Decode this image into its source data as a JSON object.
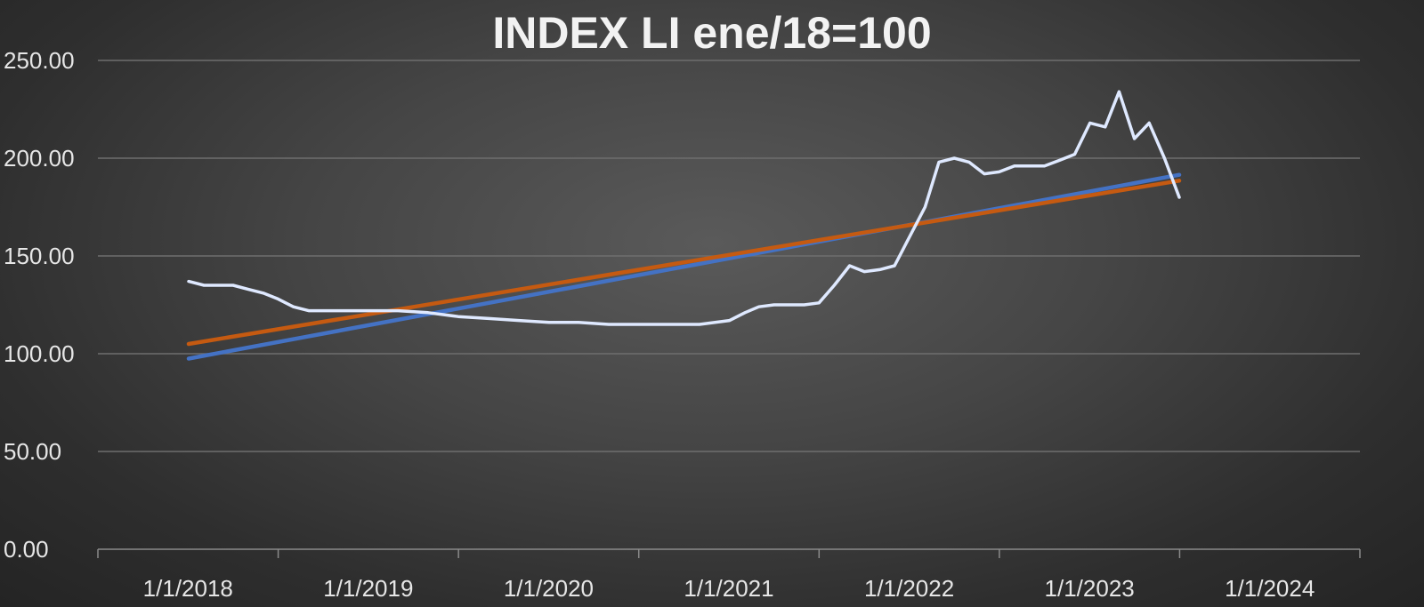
{
  "chart_data": {
    "type": "line",
    "title": "INDEX LI ene/18=100",
    "xlabel": "",
    "ylabel": "",
    "ylim": [
      0,
      250
    ],
    "yticks": [
      "0.00",
      "50.00",
      "100.00",
      "150.00",
      "200.00",
      "250.00"
    ],
    "xticks": [
      "1/1/2018",
      "1/1/2019",
      "1/1/2020",
      "1/1/2021",
      "1/1/2022",
      "1/1/2023",
      "1/1/2024"
    ],
    "xlim": [
      "2017-07-01",
      "2024-07-01"
    ],
    "grid": true,
    "legend": "none",
    "series": [
      {
        "color": "#dfe9ff",
        "x": [
          "2018-01-01",
          "2018-02-01",
          "2018-03-01",
          "2018-04-01",
          "2018-05-01",
          "2018-06-01",
          "2018-07-01",
          "2018-08-01",
          "2018-09-01",
          "2018-10-01",
          "2018-11-01",
          "2018-12-01",
          "2019-01-01",
          "2019-03-01",
          "2019-05-01",
          "2019-07-01",
          "2019-09-01",
          "2019-11-01",
          "2020-01-01",
          "2020-03-01",
          "2020-05-01",
          "2020-07-01",
          "2020-09-01",
          "2020-11-01",
          "2021-01-01",
          "2021-02-01",
          "2021-03-01",
          "2021-04-01",
          "2021-05-01",
          "2021-06-01",
          "2021-07-01",
          "2021-08-01",
          "2021-09-01",
          "2021-10-01",
          "2021-11-01",
          "2021-12-01",
          "2022-01-01",
          "2022-02-01",
          "2022-03-01",
          "2022-04-01",
          "2022-05-01",
          "2022-06-01",
          "2022-07-01",
          "2022-08-01",
          "2022-09-01",
          "2022-10-01",
          "2022-11-01",
          "2022-12-01",
          "2023-01-01",
          "2023-02-01",
          "2023-03-01",
          "2023-04-01",
          "2023-05-01",
          "2023-06-01",
          "2023-07-01"
        ],
        "values": [
          137,
          135,
          135,
          135,
          133,
          131,
          128,
          124,
          122,
          122,
          122,
          122,
          122,
          122,
          121,
          119,
          118,
          117,
          116,
          116,
          115,
          115,
          115,
          115,
          117,
          121,
          124,
          125,
          125,
          125,
          126,
          135,
          145,
          142,
          143,
          145,
          160,
          175,
          198,
          200,
          198,
          192,
          193,
          196,
          196,
          196,
          199,
          202,
          218,
          216,
          234,
          210,
          218,
          200,
          180
        ]
      },
      {
        "color": "#4472c4",
        "x": [
          "2018-01-01",
          "2023-07-01"
        ],
        "values": [
          97.5,
          191.5
        ]
      },
      {
        "color": "#c55a11",
        "x": [
          "2018-01-01",
          "2023-07-01"
        ],
        "values": [
          105,
          188.5
        ]
      }
    ]
  },
  "colors": {
    "gridline": "#6e6e6e",
    "axis": "#8a8a8a"
  }
}
